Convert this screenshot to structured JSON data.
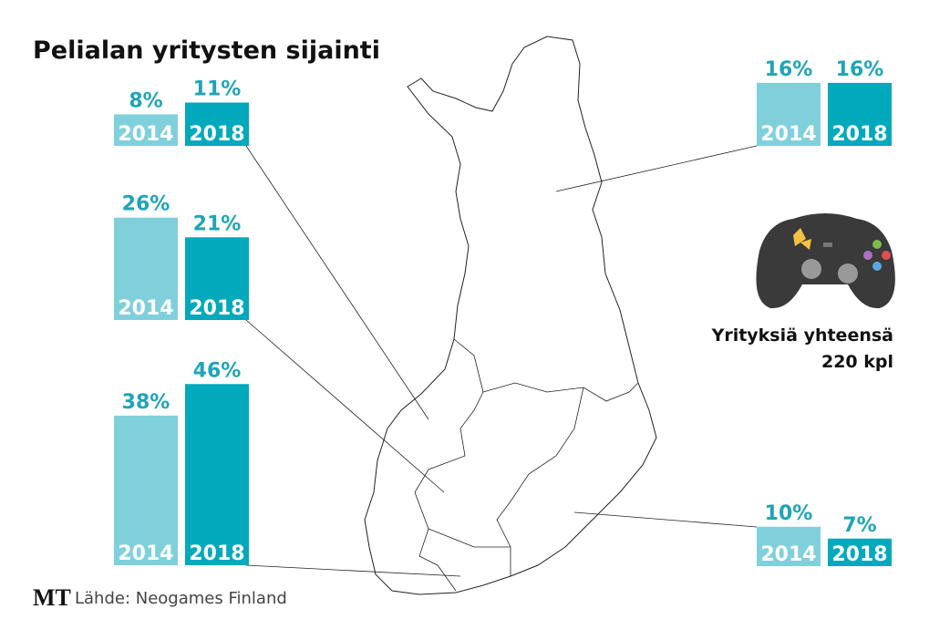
{
  "title": "Pelialan yritysten sijainti",
  "chart_data": [
    {
      "type": "bar",
      "categories": [
        "2014",
        "2018"
      ],
      "values": [
        8,
        11
      ],
      "value_labels": [
        "8%",
        "11%"
      ],
      "colors": [
        "#80d0dc",
        "#00a9bb"
      ]
    },
    {
      "type": "bar",
      "categories": [
        "2014",
        "2018"
      ],
      "values": [
        26,
        21
      ],
      "value_labels": [
        "26%",
        "21%"
      ],
      "colors": [
        "#80d0dc",
        "#00a9bb"
      ]
    },
    {
      "type": "bar",
      "categories": [
        "2014",
        "2018"
      ],
      "values": [
        38,
        46
      ],
      "value_labels": [
        "38%",
        "46%"
      ],
      "colors": [
        "#80d0dc",
        "#00a9bb"
      ]
    },
    {
      "type": "bar",
      "categories": [
        "2014",
        "2018"
      ],
      "values": [
        16,
        16
      ],
      "value_labels": [
        "16%",
        "16%"
      ],
      "colors": [
        "#80d0dc",
        "#00a9bb"
      ]
    },
    {
      "type": "bar",
      "categories": [
        "2014",
        "2018"
      ],
      "values": [
        10,
        7
      ],
      "value_labels": [
        "10%",
        "7%"
      ],
      "colors": [
        "#80d0dc",
        "#00a9bb"
      ]
    }
  ],
  "total": {
    "label": "Yrityksiä yhteensä",
    "value": "220 kpl"
  },
  "source": {
    "logo": "MT",
    "text": "Lähde: Neogames Finland"
  }
}
